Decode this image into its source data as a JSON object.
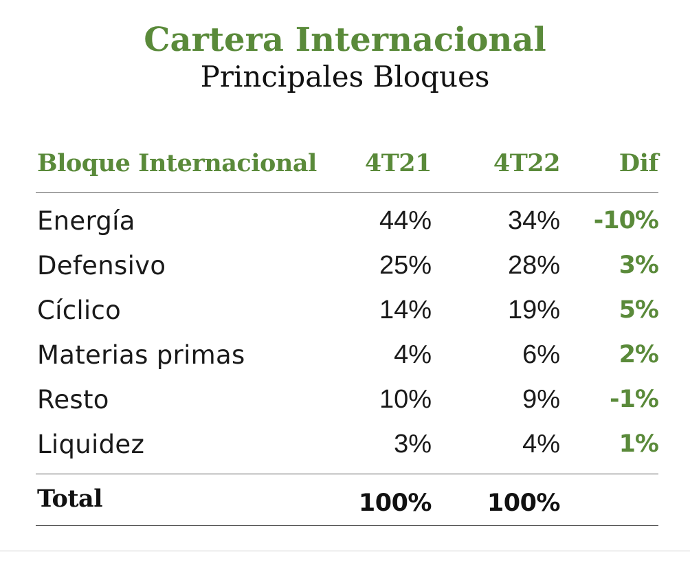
{
  "header": {
    "title": "Cartera Internacional",
    "subtitle": "Principales Bloques"
  },
  "colors": {
    "accent": "#5a8a3a",
    "text": "#111111",
    "rule": "#555555"
  },
  "table": {
    "columns": [
      "Bloque Internacional",
      "4T21",
      "4T22",
      "Dif"
    ],
    "rows": [
      {
        "bloque": "Energía",
        "t21": "44%",
        "t22": "34%",
        "dif": "-10%"
      },
      {
        "bloque": "Defensivo",
        "t21": "25%",
        "t22": "28%",
        "dif": "3%"
      },
      {
        "bloque": "Cíclico",
        "t21": "14%",
        "t22": "19%",
        "dif": "5%"
      },
      {
        "bloque": "Materias primas",
        "t21": "4%",
        "t22": "6%",
        "dif": "2%"
      },
      {
        "bloque": "Resto",
        "t21": "10%",
        "t22": "9%",
        "dif": "-1%"
      },
      {
        "bloque": "Liquidez",
        "t21": "3%",
        "t22": "4%",
        "dif": "1%"
      }
    ],
    "total": {
      "label": "Total",
      "t21": "100%",
      "t22": "100%"
    }
  }
}
